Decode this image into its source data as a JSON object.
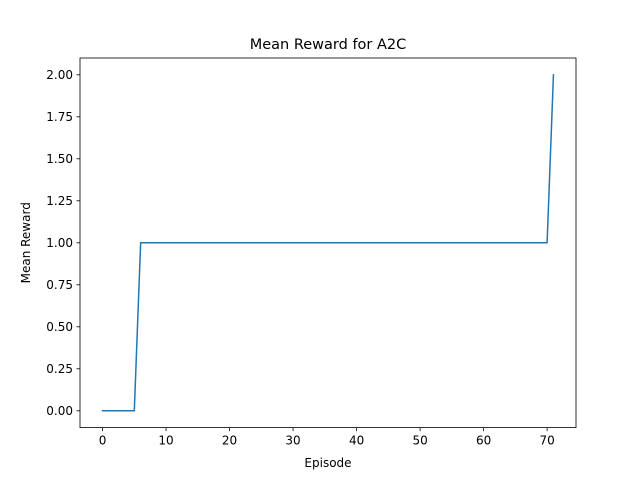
{
  "chart_data": {
    "type": "line",
    "title": "Mean Reward for A2C",
    "xlabel": "Episode",
    "ylabel": "Mean Reward",
    "xlim": [
      -3.55,
      74.55
    ],
    "ylim": [
      -0.1,
      2.1
    ],
    "grid": false,
    "legend": "none",
    "xticks": [
      0,
      10,
      20,
      30,
      40,
      50,
      60,
      70
    ],
    "xtick_labels": [
      "0",
      "10",
      "20",
      "30",
      "40",
      "50",
      "60",
      "70"
    ],
    "yticks": [
      0,
      0.25,
      0.5,
      0.75,
      1.0,
      1.25,
      1.5,
      1.75,
      2.0
    ],
    "ytick_labels": [
      "0.00",
      "0.25",
      "0.50",
      "0.75",
      "1.00",
      "1.25",
      "1.50",
      "1.75",
      "2.00"
    ],
    "series": [
      {
        "color": "#1f77b4",
        "x": [
          0,
          1,
          2,
          3,
          4,
          5,
          6,
          7,
          8,
          9,
          10,
          11,
          12,
          13,
          14,
          15,
          16,
          17,
          18,
          19,
          20,
          21,
          22,
          23,
          24,
          25,
          26,
          27,
          28,
          29,
          30,
          31,
          32,
          33,
          34,
          35,
          36,
          37,
          38,
          39,
          40,
          41,
          42,
          43,
          44,
          45,
          46,
          47,
          48,
          49,
          50,
          51,
          52,
          53,
          54,
          55,
          56,
          57,
          58,
          59,
          60,
          61,
          62,
          63,
          64,
          65,
          66,
          67,
          68,
          69,
          70,
          71
        ],
        "values": [
          0,
          0,
          0,
          0,
          0,
          0,
          1,
          1,
          1,
          1,
          1,
          1,
          1,
          1,
          1,
          1,
          1,
          1,
          1,
          1,
          1,
          1,
          1,
          1,
          1,
          1,
          1,
          1,
          1,
          1,
          1,
          1,
          1,
          1,
          1,
          1,
          1,
          1,
          1,
          1,
          1,
          1,
          1,
          1,
          1,
          1,
          1,
          1,
          1,
          1,
          1,
          1,
          1,
          1,
          1,
          1,
          1,
          1,
          1,
          1,
          1,
          1,
          1,
          1,
          1,
          1,
          1,
          1,
          1,
          1,
          1,
          2
        ]
      }
    ]
  }
}
